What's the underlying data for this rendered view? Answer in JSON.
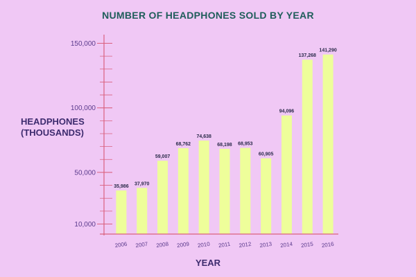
{
  "chart_data": {
    "type": "bar",
    "title": "NUMBER OF HEADPHONES SOLD BY YEAR",
    "ylabel_lines": [
      "HEADPHONES",
      "(THOUSANDS)"
    ],
    "xlabel": "YEAR",
    "categories": [
      "2006",
      "2007",
      "2008",
      "2009",
      "2010",
      "2011",
      "2012",
      "2013",
      "2014",
      "2015",
      "2016"
    ],
    "values": [
      35986,
      37970,
      59007,
      68762,
      74638,
      68198,
      68953,
      60905,
      94096,
      137268,
      141290
    ],
    "value_labels": [
      "35,986",
      "37,970",
      "59,007",
      "68,762",
      "74,638",
      "68,198",
      "68,953",
      "60,905",
      "94,096",
      "137,268",
      "141,290"
    ],
    "y_ticks": [
      10000,
      50000,
      100000,
      150000
    ],
    "y_tick_labels": [
      "10,000",
      "50,000",
      "100,000",
      "150,000"
    ],
    "ylim": [
      10000,
      150000
    ],
    "grid": false,
    "colors": {
      "bar": "#eefe9a",
      "axis": "#d9607e",
      "title": "#1f5d5a",
      "background": "#f0c8f5"
    }
  }
}
